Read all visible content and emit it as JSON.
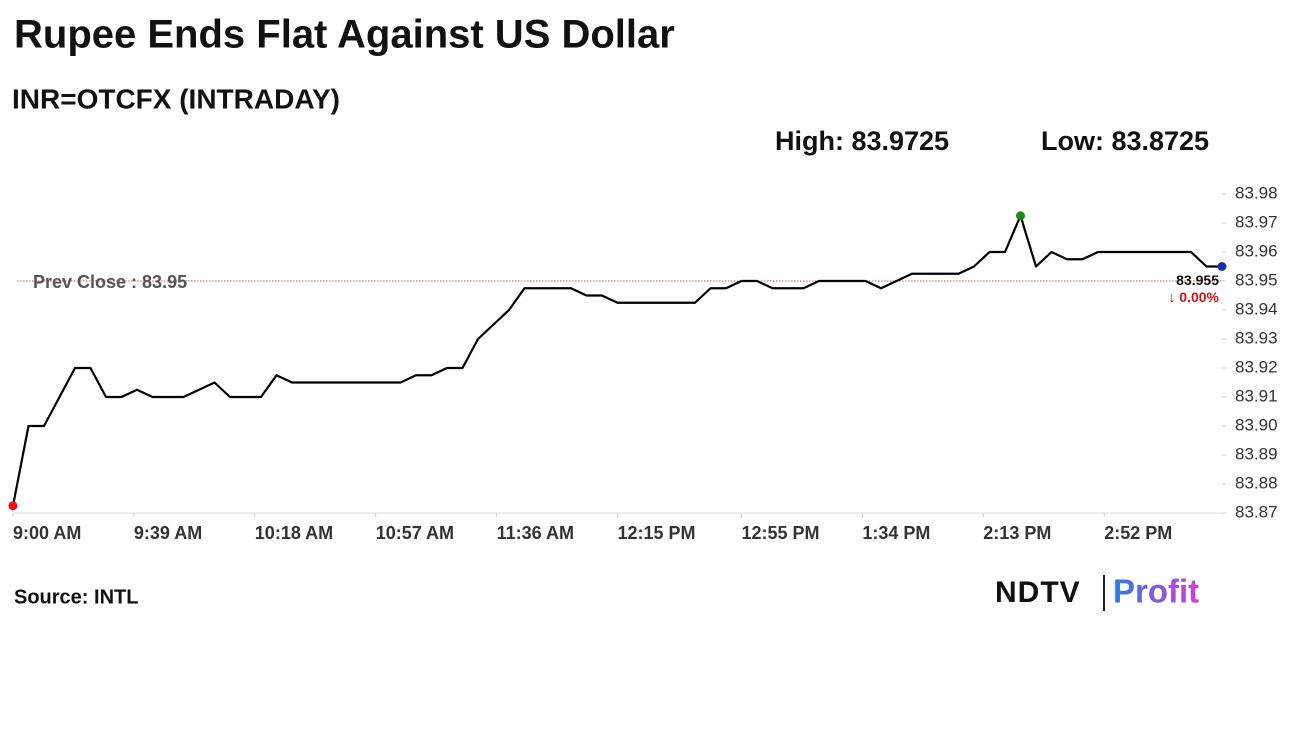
{
  "chart_data": {
    "type": "line",
    "title": "Rupee Ends Flat Against US Dollar",
    "subtitle": "INR=OTCFX (INTRADAY)",
    "high_text": "High: 83.9725",
    "low_text": "Low: 83.8725",
    "prev_close": {
      "value": 83.95,
      "label": "Prev Close : 83.95"
    },
    "last_label": "83.955",
    "change_label": "↓ 0.00%",
    "source": "Source: INTL",
    "logo": {
      "brand": "NDTV",
      "product": "Profit"
    },
    "line_color": "#000000",
    "low_color": "#e8121b",
    "high_color": "#1a8a1a",
    "last_color": "#1a2fa8",
    "prev_close_color": "#d9534f",
    "change_color": "#d0121b",
    "x": [
      "9:00 AM",
      "9:05 AM",
      "9:10 AM",
      "9:15 AM",
      "9:20 AM",
      "9:25 AM",
      "9:30 AM",
      "9:35 AM",
      "9:40 AM",
      "9:45 AM",
      "9:50 AM",
      "9:55 AM",
      "10:00 AM",
      "10:05 AM",
      "10:10 AM",
      "10:15 AM",
      "10:20 AM",
      "10:25 AM",
      "10:30 AM",
      "10:35 AM",
      "10:40 AM",
      "10:45 AM",
      "10:50 AM",
      "10:55 AM",
      "11:00 AM",
      "11:05 AM",
      "11:10 AM",
      "11:15 AM",
      "11:20 AM",
      "11:25 AM",
      "11:30 AM",
      "11:35 AM",
      "11:40 AM",
      "11:45 AM",
      "11:50 AM",
      "11:55 AM",
      "12:00 PM",
      "12:05 PM",
      "12:10 PM",
      "12:15 PM",
      "12:20 PM",
      "12:25 PM",
      "12:30 PM",
      "12:35 PM",
      "12:40 PM",
      "12:45 PM",
      "12:50 PM",
      "12:55 PM",
      "1:00 PM",
      "1:05 PM",
      "1:10 PM",
      "1:15 PM",
      "1:20 PM",
      "1:25 PM",
      "1:30 PM",
      "1:35 PM",
      "1:40 PM",
      "1:45 PM",
      "1:50 PM",
      "1:55 PM",
      "2:00 PM",
      "2:05 PM",
      "2:10 PM",
      "2:15 PM",
      "2:20 PM",
      "2:25 PM",
      "2:30 PM",
      "2:35 PM",
      "2:40 PM",
      "2:45 PM",
      "2:50 PM",
      "2:55 PM",
      "3:00 PM",
      "3:05 PM",
      "3:10 PM",
      "3:15 PM",
      "3:20 PM",
      "3:25 PM",
      "3:30 PM"
    ],
    "values": [
      83.8725,
      83.9,
      83.9,
      83.91,
      83.92,
      83.92,
      83.91,
      83.91,
      83.9125,
      83.91,
      83.91,
      83.91,
      83.9125,
      83.915,
      83.91,
      83.91,
      83.91,
      83.9175,
      83.915,
      83.915,
      83.915,
      83.915,
      83.915,
      83.915,
      83.915,
      83.915,
      83.9175,
      83.9175,
      83.92,
      83.92,
      83.93,
      83.935,
      83.94,
      83.9475,
      83.9475,
      83.9475,
      83.9475,
      83.945,
      83.945,
      83.9425,
      83.9425,
      83.9425,
      83.9425,
      83.9425,
      83.9425,
      83.9475,
      83.9475,
      83.95,
      83.95,
      83.9475,
      83.9475,
      83.9475,
      83.95,
      83.95,
      83.95,
      83.95,
      83.9475,
      83.95,
      83.9525,
      83.9525,
      83.9525,
      83.9525,
      83.955,
      83.96,
      83.96,
      83.9725,
      83.955,
      83.96,
      83.9575,
      83.9575,
      83.96,
      83.96,
      83.96,
      83.96,
      83.96,
      83.96,
      83.96,
      83.955,
      83.955
    ],
    "xlim": [
      "9:00 AM",
      "3:30 PM"
    ],
    "xticks": [
      "9:00 AM",
      "9:39 AM",
      "10:18 AM",
      "10:57 AM",
      "11:36 AM",
      "12:15 PM",
      "12:55 PM",
      "1:34 PM",
      "2:13 PM",
      "2:52 PM"
    ],
    "ylim": [
      83.87,
      83.98
    ],
    "yticks": [
      83.87,
      83.88,
      83.89,
      {
        "value": 83.9,
        "label": "83.90"
      },
      83.91,
      83.92,
      83.93,
      83.94,
      83.95,
      83.96,
      83.97,
      83.98
    ]
  }
}
